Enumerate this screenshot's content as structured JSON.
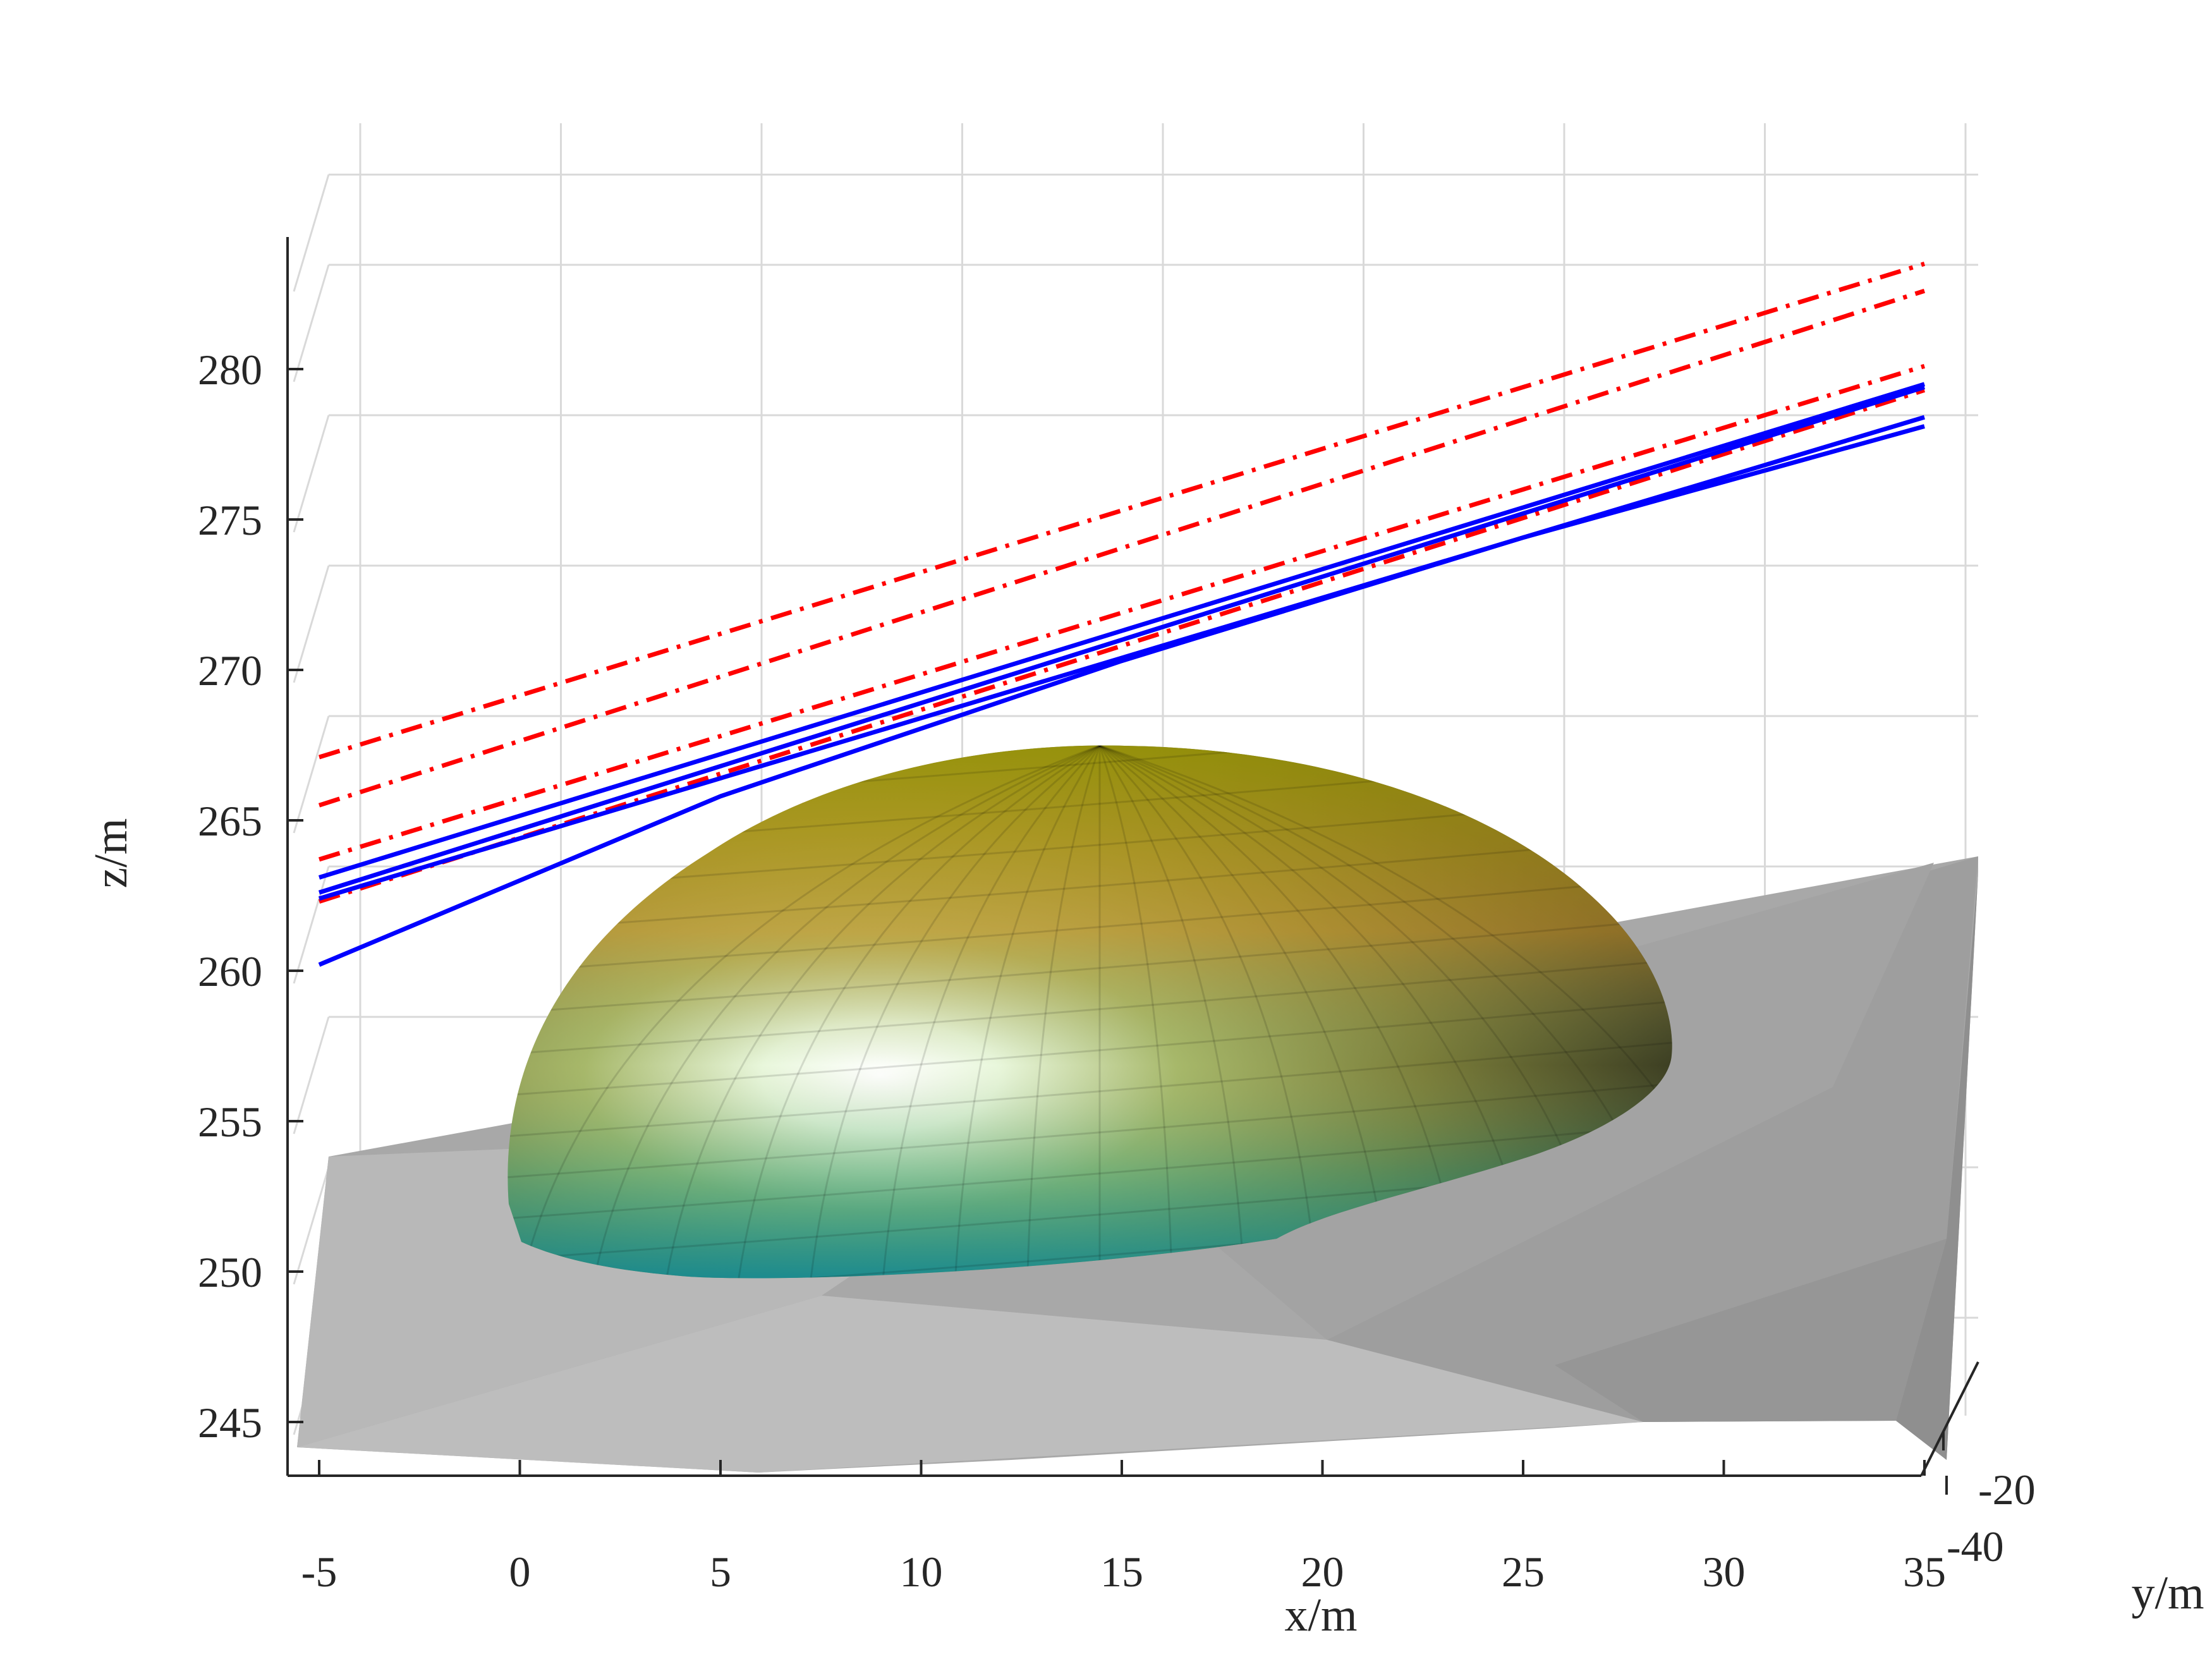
{
  "chart_data": {
    "type": "line",
    "subtype": "3d-surface-with-trajectories",
    "title": "",
    "xlabel": "x/m",
    "ylabel": "y/m",
    "zlabel": "z/m",
    "x_ticks": [
      -5,
      0,
      5,
      10,
      15,
      20,
      25,
      30,
      35
    ],
    "y_ticks": [
      -40,
      -20
    ],
    "z_ticks": [
      245,
      250,
      255,
      260,
      265,
      270,
      275,
      280
    ],
    "xlim": [
      -5,
      35
    ],
    "zlim": [
      243,
      284
    ],
    "grid": true,
    "legend": "none",
    "series": [
      {
        "style": "dash-dot",
        "color": "#ff0000",
        "x": [
          -5,
          35
        ],
        "z": [
          267.1,
          283.5
        ]
      },
      {
        "style": "dash-dot",
        "color": "#ff0000",
        "x": [
          -5,
          35
        ],
        "z": [
          265.5,
          282.6
        ]
      },
      {
        "style": "dash-dot",
        "color": "#ff0000",
        "x": [
          -5,
          35
        ],
        "z": [
          263.7,
          280.1
        ]
      },
      {
        "style": "dash-dot",
        "color": "#ff0000",
        "x": [
          -5,
          35
        ],
        "z": [
          262.3,
          279.3
        ]
      },
      {
        "style": "solid",
        "color": "#0000ff",
        "x": [
          -5,
          35
        ],
        "z": [
          263.1,
          279.5
        ]
      },
      {
        "style": "solid",
        "color": "#0000ff",
        "x": [
          -5,
          35
        ],
        "z": [
          262.6,
          279.4
        ]
      },
      {
        "style": "solid",
        "color": "#0000ff",
        "x": [
          -5,
          35
        ],
        "z": [
          262.4,
          278.4
        ]
      },
      {
        "style": "solid",
        "color": "#0000ff",
        "x": [
          -5,
          5,
          15,
          25,
          35
        ],
        "z": [
          260.2,
          265.8,
          270.3,
          274.4,
          278.1
        ]
      }
    ],
    "objects": [
      {
        "name": "dome-surface",
        "colormap": "teal-to-olive",
        "peak_z": 267.3,
        "x_range": [
          -5,
          27
        ],
        "base_z": 250.5
      },
      {
        "name": "ground-surface",
        "color": "#a6a6a6",
        "z_range": [
          243.5,
          263.5
        ]
      }
    ]
  }
}
